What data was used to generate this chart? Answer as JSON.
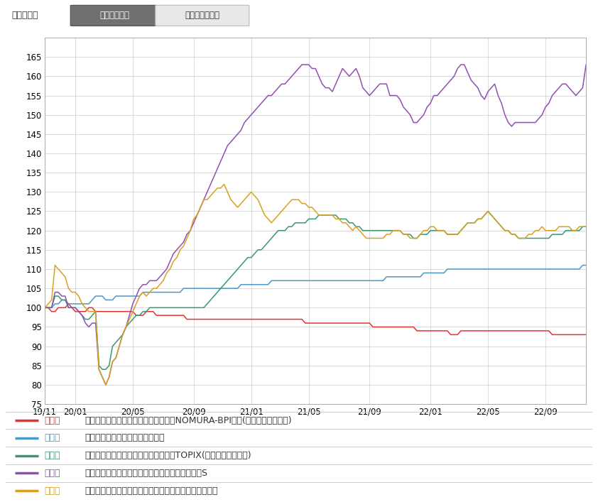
{
  "period_label": "表示期間：",
  "btn1": "３年（週次）",
  "btn2": "１０年（月次）",
  "x_ticks": [
    "19/11",
    "20/01",
    "20/05",
    "20/09",
    "21/01",
    "21/05",
    "21/09",
    "22/01",
    "22/05",
    "22/09"
  ],
  "ylim": [
    75,
    170
  ],
  "yticks": [
    75,
    80,
    85,
    90,
    95,
    100,
    105,
    110,
    115,
    120,
    125,
    130,
    135,
    140,
    145,
    150,
    155,
    160,
    165
  ],
  "bg_color": "#ffffff",
  "grid_color": "#cccccc",
  "series": {
    "red": {
      "color": "#e83030",
      "label_short": "赤線",
      "label": "野村国内債券インデックスファンド・NOMURA-BPI総合(確定拠出年金向け)"
    },
    "blue": {
      "color": "#4898c8",
      "label_short": "青線",
      "label": "ＤＣダイワ外国債券インデックス"
    },
    "green": {
      "color": "#389870",
      "label_short": "緑線",
      "label": "野村国内株式インデックスファンド・TOPIX(確定拠出年金向け)"
    },
    "purple": {
      "color": "#9050b0",
      "label_short": "紫線",
      "label": "みずほ信託銀行　外国株式インデックスファンドS"
    },
    "yellow": {
      "color": "#d8a020",
      "label_short": "黄線",
      "label": "ＤＩＡＭ新興国株式インデックスファンド＜ＤＣ年金＞"
    }
  },
  "tick_positions": [
    0,
    9,
    26,
    44,
    61,
    78,
    96,
    114,
    131,
    148
  ],
  "red_data": [
    100,
    100,
    99,
    99,
    100,
    100,
    100,
    101,
    100,
    99,
    99,
    99,
    99,
    100,
    100,
    99,
    99,
    99,
    99,
    99,
    99,
    99,
    99,
    99,
    99,
    99,
    99,
    98,
    98,
    98,
    99,
    99,
    99,
    98,
    98,
    98,
    98,
    98,
    98,
    98,
    98,
    98,
    97,
    97,
    97,
    97,
    97,
    97,
    97,
    97,
    97,
    97,
    97,
    97,
    97,
    97,
    97,
    97,
    97,
    97,
    97,
    97,
    97,
    97,
    97,
    97,
    97,
    97,
    97,
    97,
    97,
    97,
    97,
    97,
    97,
    97,
    97,
    96,
    96,
    96,
    96,
    96,
    96,
    96,
    96,
    96,
    96,
    96,
    96,
    96,
    96,
    96,
    96,
    96,
    96,
    96,
    96,
    95,
    95,
    95,
    95,
    95,
    95,
    95,
    95,
    95,
    95,
    95,
    95,
    95,
    94,
    94,
    94,
    94,
    94,
    94,
    94,
    94,
    94,
    94,
    93,
    93,
    93,
    94,
    94,
    94,
    94,
    94,
    94,
    94,
    94,
    94,
    94,
    94,
    94,
    94,
    94,
    94,
    94,
    94,
    94,
    94,
    94,
    94,
    94,
    94,
    94,
    94,
    94,
    94,
    93,
    93,
    93,
    93,
    93,
    93,
    93,
    93,
    93,
    93,
    93
  ],
  "blue_data": [
    100,
    100,
    100,
    101,
    101,
    102,
    102,
    101,
    101,
    101,
    101,
    101,
    101,
    101,
    102,
    103,
    103,
    103,
    102,
    102,
    102,
    103,
    103,
    103,
    103,
    103,
    103,
    103,
    103,
    104,
    104,
    104,
    104,
    104,
    104,
    104,
    104,
    104,
    104,
    104,
    104,
    105,
    105,
    105,
    105,
    105,
    105,
    105,
    105,
    105,
    105,
    105,
    105,
    105,
    105,
    105,
    105,
    105,
    106,
    106,
    106,
    106,
    106,
    106,
    106,
    106,
    106,
    107,
    107,
    107,
    107,
    107,
    107,
    107,
    107,
    107,
    107,
    107,
    107,
    107,
    107,
    107,
    107,
    107,
    107,
    107,
    107,
    107,
    107,
    107,
    107,
    107,
    107,
    107,
    107,
    107,
    107,
    107,
    107,
    107,
    107,
    108,
    108,
    108,
    108,
    108,
    108,
    108,
    108,
    108,
    108,
    108,
    109,
    109,
    109,
    109,
    109,
    109,
    109,
    110,
    110,
    110,
    110,
    110,
    110,
    110,
    110,
    110,
    110,
    110,
    110,
    110,
    110,
    110,
    110,
    110,
    110,
    110,
    110,
    110,
    110,
    110,
    110,
    110,
    110,
    110,
    110,
    110,
    110,
    110,
    110,
    110,
    110,
    110,
    110,
    110,
    110,
    110,
    110,
    111,
    111
  ],
  "green_data": [
    100,
    100,
    100,
    103,
    103,
    102,
    102,
    100,
    100,
    100,
    99,
    98,
    97,
    97,
    98,
    99,
    85,
    84,
    84,
    85,
    90,
    91,
    92,
    93,
    95,
    96,
    97,
    98,
    98,
    99,
    99,
    100,
    100,
    100,
    100,
    100,
    100,
    100,
    100,
    100,
    100,
    100,
    100,
    100,
    100,
    100,
    100,
    100,
    101,
    102,
    103,
    104,
    105,
    106,
    107,
    108,
    109,
    110,
    111,
    112,
    113,
    113,
    114,
    115,
    115,
    116,
    117,
    118,
    119,
    120,
    120,
    120,
    121,
    121,
    122,
    122,
    122,
    122,
    123,
    123,
    123,
    124,
    124,
    124,
    124,
    124,
    124,
    123,
    123,
    123,
    122,
    122,
    121,
    121,
    120,
    120,
    120,
    120,
    120,
    120,
    120,
    120,
    120,
    120,
    120,
    120,
    119,
    119,
    119,
    118,
    118,
    119,
    119,
    119,
    120,
    120,
    120,
    120,
    120,
    119,
    119,
    119,
    119,
    120,
    121,
    122,
    122,
    122,
    123,
    123,
    124,
    125,
    124,
    123,
    122,
    121,
    120,
    120,
    119,
    119,
    118,
    118,
    118,
    118,
    118,
    118,
    118,
    118,
    118,
    118,
    119,
    119,
    119,
    119,
    120,
    120,
    120,
    120,
    120,
    121,
    121
  ],
  "purple_data": [
    100,
    100,
    100,
    104,
    104,
    103,
    103,
    100,
    100,
    100,
    99,
    98,
    96,
    95,
    96,
    96,
    84,
    82,
    80,
    82,
    86,
    87,
    90,
    93,
    95,
    98,
    101,
    103,
    105,
    106,
    106,
    107,
    107,
    107,
    108,
    109,
    110,
    112,
    114,
    115,
    116,
    117,
    119,
    120,
    122,
    124,
    126,
    128,
    130,
    132,
    134,
    136,
    138,
    140,
    142,
    143,
    144,
    145,
    146,
    148,
    149,
    150,
    151,
    152,
    153,
    154,
    155,
    155,
    156,
    157,
    158,
    158,
    159,
    160,
    161,
    162,
    163,
    163,
    163,
    162,
    162,
    160,
    158,
    157,
    157,
    156,
    158,
    160,
    162,
    161,
    160,
    161,
    162,
    160,
    157,
    156,
    155,
    156,
    157,
    158,
    158,
    158,
    155,
    155,
    155,
    154,
    152,
    151,
    150,
    148,
    148,
    149,
    150,
    152,
    153,
    155,
    155,
    156,
    157,
    158,
    159,
    160,
    162,
    163,
    163,
    161,
    159,
    158,
    157,
    155,
    154,
    156,
    157,
    158,
    155,
    153,
    150,
    148,
    147,
    148,
    148,
    148,
    148,
    148,
    148,
    148,
    149,
    150,
    152,
    153,
    155,
    156,
    157,
    158,
    158,
    157,
    156,
    155,
    156,
    157,
    163
  ],
  "yellow_data": [
    100,
    101,
    102,
    111,
    110,
    109,
    108,
    105,
    104,
    104,
    103,
    101,
    100,
    99,
    99,
    99,
    84,
    82,
    80,
    82,
    86,
    87,
    90,
    93,
    95,
    97,
    99,
    101,
    103,
    104,
    103,
    104,
    105,
    105,
    106,
    107,
    109,
    110,
    112,
    113,
    115,
    116,
    118,
    120,
    123,
    124,
    126,
    128,
    128,
    129,
    130,
    131,
    131,
    132,
    130,
    128,
    127,
    126,
    127,
    128,
    129,
    130,
    129,
    128,
    126,
    124,
    123,
    122,
    123,
    124,
    125,
    126,
    127,
    128,
    128,
    128,
    127,
    127,
    126,
    126,
    125,
    124,
    124,
    124,
    124,
    124,
    123,
    123,
    122,
    122,
    121,
    120,
    121,
    120,
    119,
    118,
    118,
    118,
    118,
    118,
    118,
    119,
    119,
    120,
    120,
    120,
    119,
    119,
    118,
    118,
    118,
    119,
    120,
    120,
    121,
    121,
    120,
    120,
    120,
    119,
    119,
    119,
    119,
    120,
    121,
    122,
    122,
    122,
    123,
    123,
    124,
    125,
    124,
    123,
    122,
    121,
    120,
    120,
    119,
    119,
    118,
    118,
    118,
    119,
    119,
    120,
    120,
    121,
    120,
    120,
    120,
    120,
    121,
    121,
    121,
    121,
    120,
    120,
    121,
    121,
    121
  ]
}
